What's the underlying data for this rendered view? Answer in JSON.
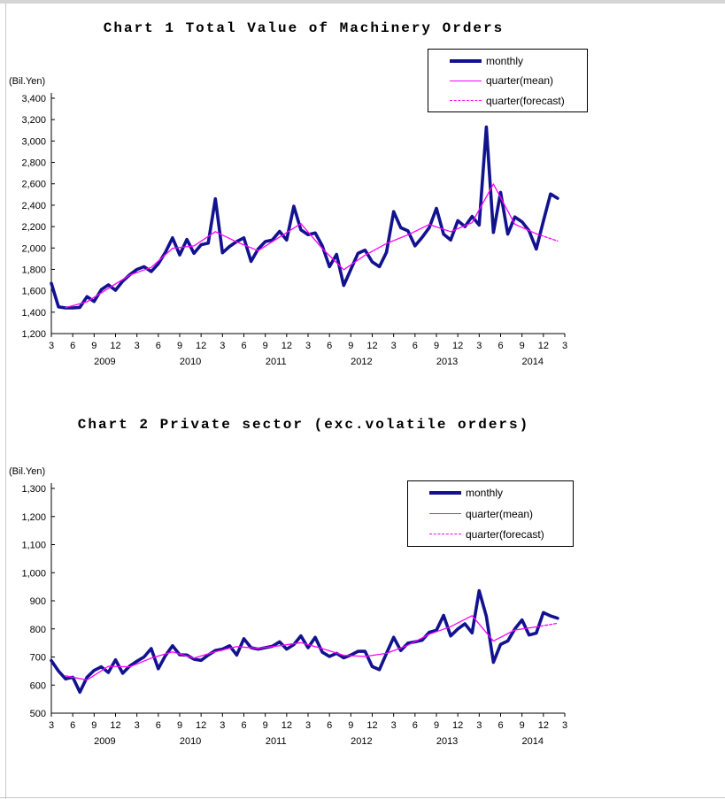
{
  "page": {
    "background": "#ffffff",
    "top_strip_color": "#d5d5d5",
    "edge_line_color": "#c8c8c8"
  },
  "colors": {
    "monthly_line": "#12128F",
    "quarter_line": "#FF00FF",
    "axis_line": "#000000",
    "label_text": "#000000"
  },
  "chart_data": [
    {
      "type": "line",
      "title": "Chart 1 Total Value of Machinery Orders",
      "unit_label": "(Bil.Yen)",
      "ylim": [
        1200,
        3400
      ],
      "ytick_step": 200,
      "grid": false,
      "legend_position": "top-right",
      "legend": [
        "monthly",
        "quarter(mean)",
        "quarter(forecast)"
      ],
      "x_tick_labels": [
        "3",
        "6",
        "9",
        "12",
        "3",
        "6",
        "9",
        "12",
        "3",
        "6",
        "9",
        "12",
        "3",
        "6",
        "9",
        "12",
        "3",
        "6",
        "9",
        "12",
        "3",
        "6",
        "9",
        "12",
        "3"
      ],
      "year_labels": [
        "2009",
        "2010",
        "2011",
        "2012",
        "2013",
        "2014"
      ],
      "series": [
        {
          "name": "monthly",
          "style": "monthly",
          "values": [
            1670,
            1450,
            1440,
            1440,
            1445,
            1545,
            1500,
            1610,
            1655,
            1605,
            1690,
            1750,
            1800,
            1825,
            1780,
            1852,
            1960,
            2095,
            1935,
            2080,
            1950,
            2030,
            2045,
            2460,
            1955,
            2015,
            2060,
            2095,
            1875,
            1990,
            2060,
            2075,
            2155,
            2075,
            2390,
            2170,
            2125,
            2140,
            2020,
            1825,
            1940,
            1650,
            1800,
            1950,
            1980,
            1870,
            1825,
            1960,
            2340,
            2190,
            2160,
            2020,
            2100,
            2190,
            2370,
            2130,
            2075,
            2255,
            2200,
            2295,
            2215,
            3130,
            2145,
            2520,
            2130,
            2290,
            2245,
            2160,
            1990,
            2250,
            2505,
            2465
          ]
        },
        {
          "name": "quarter(mean)",
          "style": "mean",
          "x": [
            2,
            5,
            8,
            11,
            14,
            17,
            20,
            23,
            26,
            29,
            32,
            35,
            38,
            41,
            44,
            47,
            50,
            53,
            56,
            59,
            62,
            65,
            68
          ],
          "values": [
            1443,
            1497,
            1623,
            1747,
            1819,
            1997,
            2020,
            2153,
            2057,
            1975,
            2102,
            2228,
            1995,
            1797,
            1933,
            2042,
            2123,
            2220,
            2153,
            2237,
            2598,
            2222,
            2133
          ]
        },
        {
          "name": "quarter(forecast)",
          "style": "forecast",
          "x": [
            68,
            71
          ],
          "values": [
            2133,
            2065
          ]
        }
      ]
    },
    {
      "type": "line",
      "title": "Chart 2 Private sector (exc.volatile orders)",
      "unit_label": "(Bil.Yen)",
      "ylim": [
        500,
        1300
      ],
      "ytick_step": 100,
      "grid": false,
      "legend_position": "top-right",
      "legend": [
        "monthly",
        "quarter(mean)",
        "quarter(forecast)"
      ],
      "x_tick_labels": [
        "3",
        "6",
        "9",
        "12",
        "3",
        "6",
        "9",
        "12",
        "3",
        "6",
        "9",
        "12",
        "3",
        "6",
        "9",
        "12",
        "3",
        "6",
        "9",
        "12",
        "3",
        "6",
        "9",
        "12",
        "3"
      ],
      "year_labels": [
        "2009",
        "2010",
        "2011",
        "2012",
        "2013",
        "2014"
      ],
      "series": [
        {
          "name": "monthly",
          "style": "monthly",
          "values": [
            687,
            650,
            622,
            628,
            575,
            628,
            652,
            665,
            645,
            690,
            642,
            668,
            685,
            700,
            730,
            658,
            705,
            740,
            708,
            707,
            692,
            688,
            707,
            723,
            728,
            740,
            707,
            765,
            733,
            728,
            733,
            738,
            754,
            728,
            744,
            775,
            733,
            770,
            717,
            702,
            713,
            697,
            707,
            720,
            720,
            666,
            655,
            713,
            770,
            723,
            749,
            754,
            760,
            788,
            795,
            848,
            775,
            800,
            818,
            786,
            936,
            845,
            681,
            745,
            757,
            800,
            832,
            778,
            785,
            858,
            846,
            838
          ]
        },
        {
          "name": "quarter(mean)",
          "style": "mean",
          "x": [
            2,
            5,
            8,
            11,
            14,
            17,
            20,
            23,
            26,
            29,
            32,
            35,
            38,
            41,
            44,
            47,
            50,
            53,
            56,
            59,
            62,
            65,
            68
          ],
          "values": [
            633,
            618,
            667,
            665,
            696,
            718,
            696,
            719,
            737,
            731,
            740,
            751,
            730,
            706,
            702,
            713,
            742,
            781,
            808,
            847,
            757,
            796,
            807
          ]
        },
        {
          "name": "quarter(forecast)",
          "style": "forecast",
          "x": [
            68,
            71
          ],
          "values": [
            807,
            820
          ]
        }
      ]
    }
  ]
}
